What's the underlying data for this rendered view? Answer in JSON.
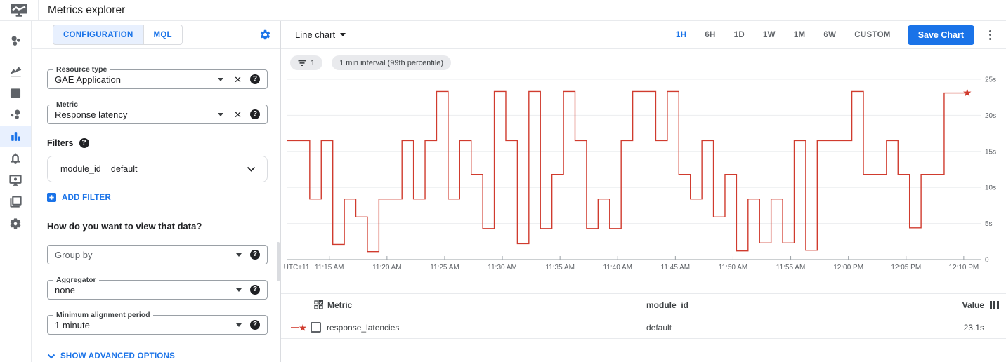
{
  "app": {
    "title": "Metrics explorer"
  },
  "sidebar": {
    "icons": [
      "overview",
      "metrics",
      "dashboards",
      "services",
      "metrics-explorer",
      "alerting",
      "uptime-checks",
      "groups",
      "settings"
    ],
    "active": "metrics-explorer"
  },
  "config_panel": {
    "tabs": [
      {
        "label": "CONFIGURATION",
        "active": true
      },
      {
        "label": "MQL",
        "active": false
      }
    ],
    "resource_type": {
      "label": "Resource type",
      "value": "GAE Application"
    },
    "metric": {
      "label": "Metric",
      "value": "Response latency"
    },
    "filters_label": "Filters",
    "filter_value": "module_id = default",
    "add_filter_label": "ADD FILTER",
    "view_heading": "How do you want to view that data?",
    "group_by": {
      "placeholder": "Group by"
    },
    "aggregator": {
      "label": "Aggregator",
      "value": "none"
    },
    "min_alignment": {
      "label": "Minimum alignment period",
      "value": "1 minute"
    },
    "advanced_label": "SHOW ADVANCED OPTIONS"
  },
  "chart_toolbar": {
    "chart_type": "Line chart",
    "ranges": [
      "1H",
      "6H",
      "1D",
      "1W",
      "1M",
      "6W",
      "CUSTOM"
    ],
    "active_range": "1H",
    "save_label": "Save Chart"
  },
  "chips": {
    "filter_count": "1",
    "interval": "1 min interval (99th percentile)"
  },
  "chart_data": {
    "type": "line",
    "step": true,
    "title": "Response latency, 1 min interval (99th percentile)",
    "xlabel": "",
    "ylabel": "",
    "x_prefix_label": "UTC+11",
    "x_ticks": [
      "11:15 AM",
      "11:20 AM",
      "11:25 AM",
      "11:30 AM",
      "11:35 AM",
      "11:40 AM",
      "11:45 AM",
      "11:50 AM",
      "11:55 AM",
      "12:00 PM",
      "12:05 PM",
      "12:10 PM"
    ],
    "y_tick_values": [
      0,
      5,
      10,
      15,
      20,
      25
    ],
    "y_ticks": [
      "0",
      "5s",
      "10s",
      "15s",
      "20s",
      "25s"
    ],
    "ylim": [
      0,
      25
    ],
    "grid": true,
    "legend_position": "bottom-table",
    "series": [
      {
        "name": "response_latencies",
        "color": "#d03b2e",
        "unit": "s",
        "start_time": "11:11 AM",
        "interval_minutes": 1,
        "end_marker": "star",
        "latest_value": 23.1,
        "values": [
          16.5,
          16.5,
          8.4,
          16.5,
          2.1,
          8.4,
          5.9,
          1.1,
          8.4,
          8.4,
          16.5,
          8.4,
          16.5,
          23.3,
          8.4,
          16.5,
          11.8,
          4.3,
          23.3,
          16.5,
          2.2,
          23.3,
          4.3,
          11.8,
          23.3,
          16.5,
          4.3,
          8.4,
          4.3,
          16.5,
          23.3,
          23.3,
          16.5,
          23.3,
          11.8,
          8.4,
          16.5,
          5.9,
          11.8,
          1.2,
          8.4,
          2.3,
          8.4,
          2.3,
          16.5,
          1.3,
          16.5,
          16.5,
          16.5,
          23.3,
          11.8,
          11.8,
          16.5,
          11.8,
          4.4,
          11.8,
          11.8,
          23.1,
          23.1
        ]
      }
    ]
  },
  "table": {
    "headers": {
      "metric": "Metric",
      "module_id": "module_id",
      "value": "Value"
    },
    "rows": [
      {
        "metric": "response_latencies",
        "module_id": "default",
        "value": "23.1s"
      }
    ]
  }
}
